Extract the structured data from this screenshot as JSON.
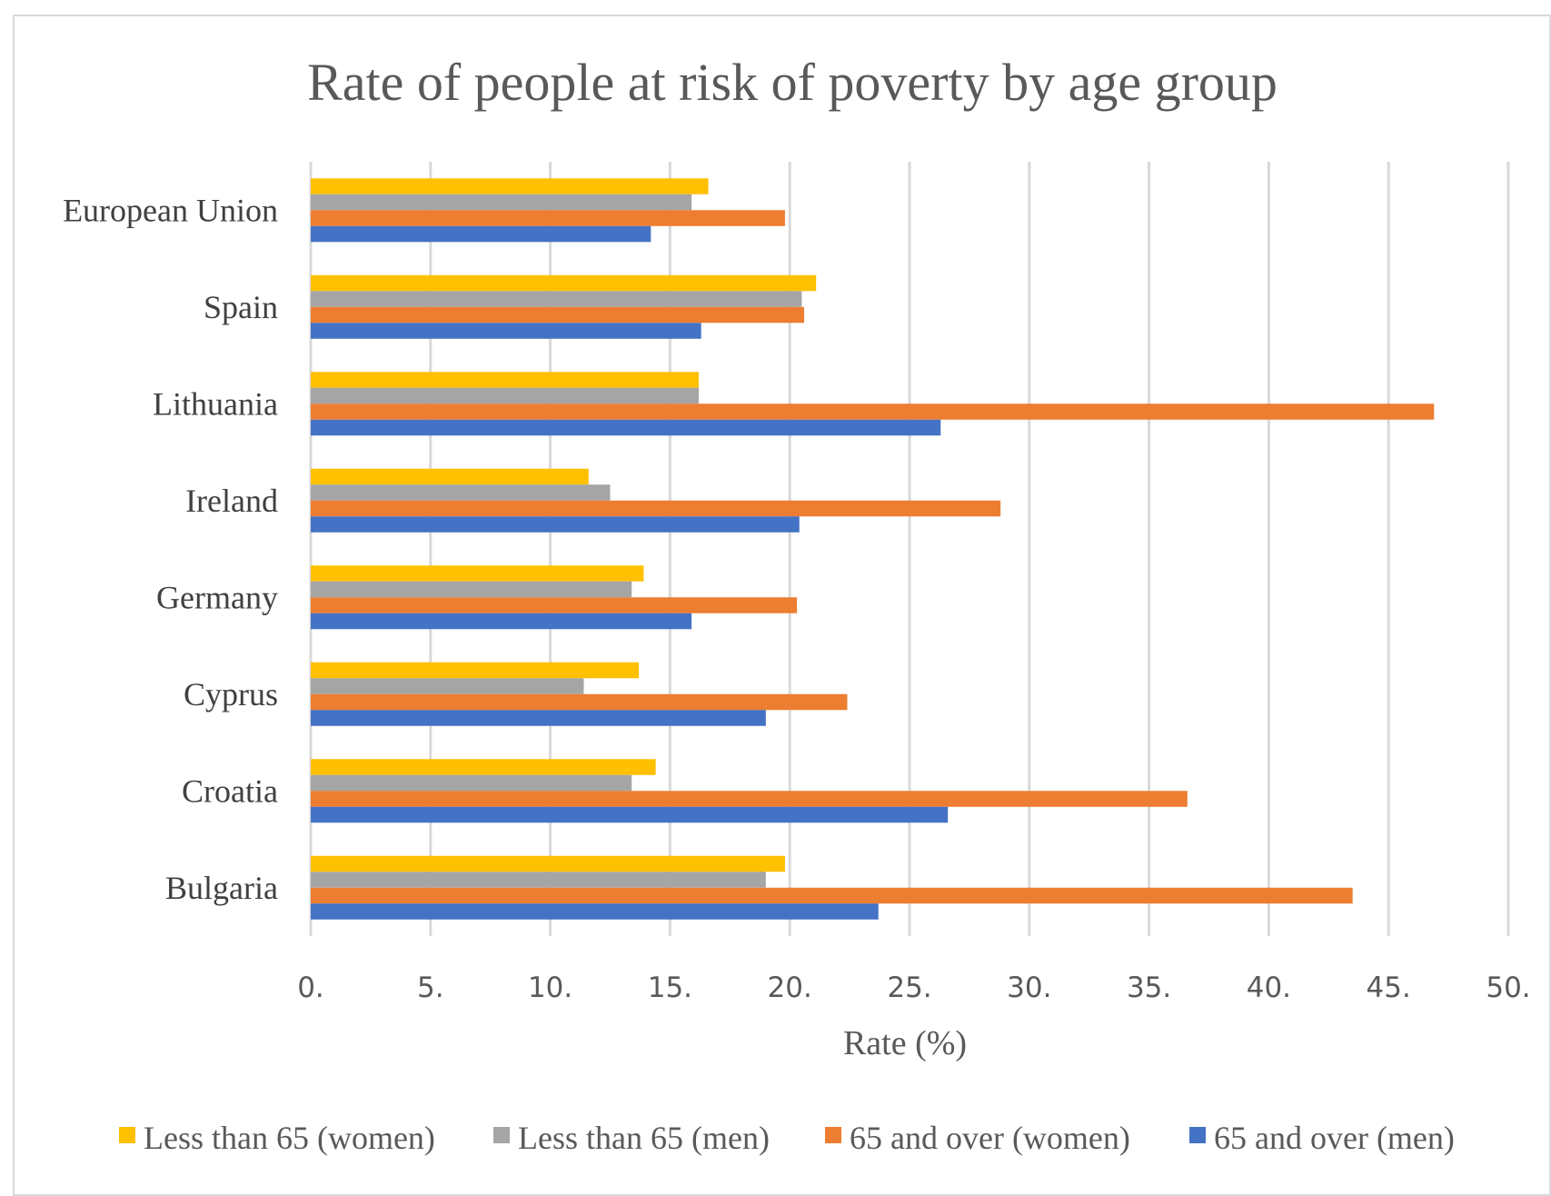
{
  "chart_data": {
    "type": "bar",
    "orientation": "horizontal",
    "title": "Rate of people at risk of poverty by age group",
    "xlabel": "Rate (%)",
    "ylabel": "",
    "xlim": [
      0,
      50
    ],
    "ticks": [
      0,
      5,
      10,
      15,
      20,
      25,
      30,
      35,
      40,
      45,
      50
    ],
    "tick_labels": [
      "0.",
      "5.",
      "10.",
      "15.",
      "20.",
      "25.",
      "30.",
      "35.",
      "40.",
      "45.",
      "50."
    ],
    "grid": true,
    "legend_position": "bottom",
    "categories": [
      "European Union",
      "Spain",
      "Lithuania",
      "Ireland",
      "Germany",
      "Cyprus",
      "Croatia",
      "Bulgaria"
    ],
    "series": [
      {
        "name": "Less than 65 (women)",
        "color": "#FFC000",
        "values": [
          16.6,
          21.1,
          16.2,
          11.6,
          13.9,
          13.7,
          14.4,
          19.8
        ]
      },
      {
        "name": "Less than 65 (men)",
        "color": "#A5A5A5",
        "values": [
          15.9,
          20.5,
          16.2,
          12.5,
          13.4,
          11.4,
          13.4,
          19.0
        ]
      },
      {
        "name": "65 and over (women)",
        "color": "#ED7D31",
        "values": [
          19.8,
          20.6,
          46.9,
          28.8,
          20.3,
          22.4,
          36.6,
          43.5
        ]
      },
      {
        "name": "65 and over (men)",
        "color": "#4472C4",
        "values": [
          14.2,
          16.3,
          26.3,
          20.4,
          15.9,
          19.0,
          26.6,
          23.7
        ]
      }
    ]
  }
}
